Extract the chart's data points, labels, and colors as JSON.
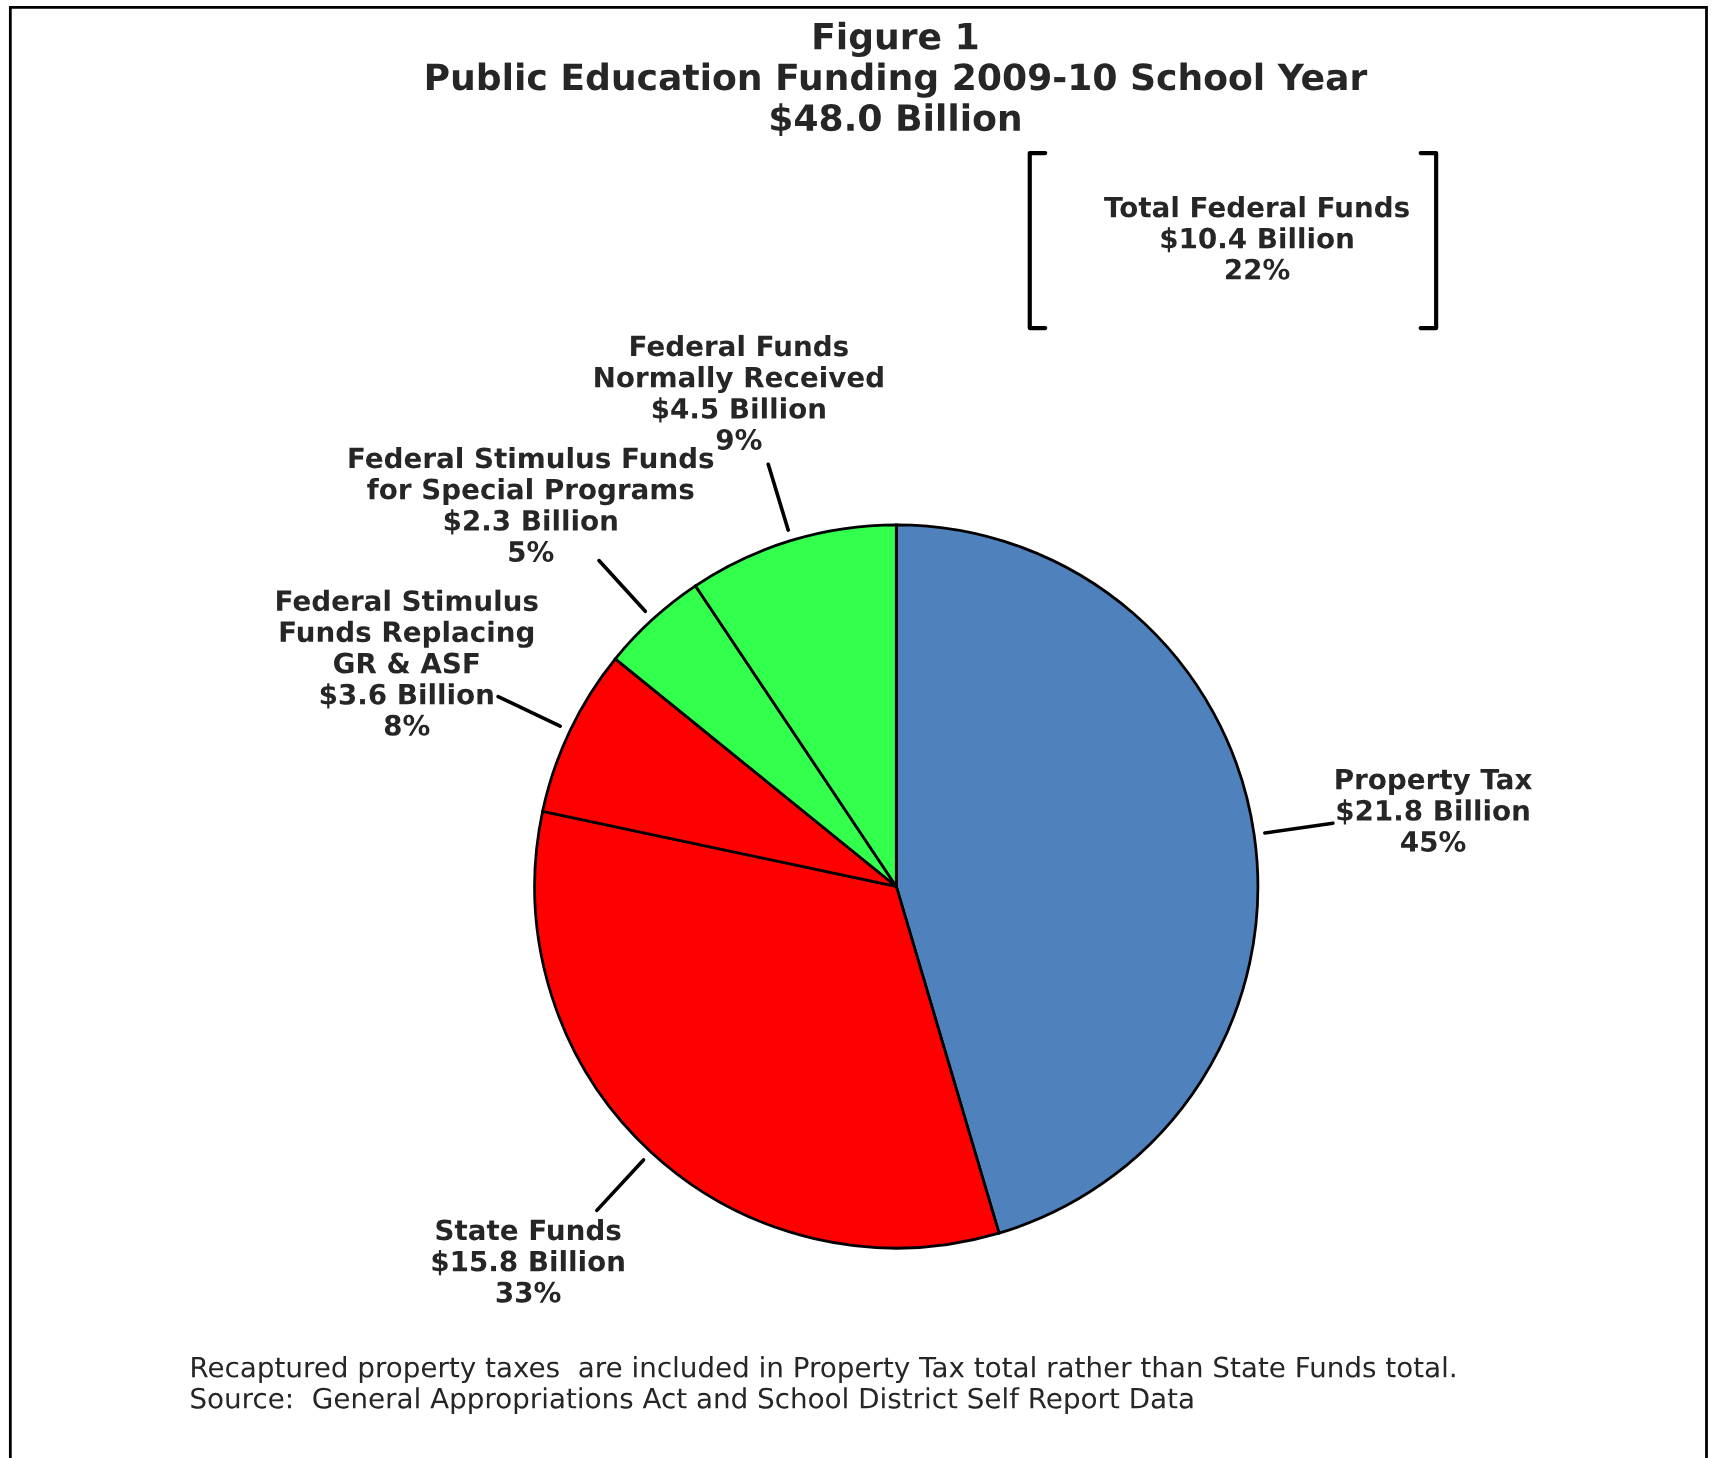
{
  "chart_data": {
    "type": "pie",
    "title": "Figure 1\nPublic Education Funding 2009-10 School Year\n$48.0 Billion",
    "categories": [
      "Property Tax",
      "State Funds",
      "Federal Stimulus\nFunds Replacing\nGR & ASF",
      "Federal Stimulus Funds\nfor Special Programs",
      "Federal Funds\nNormally Received"
    ],
    "values": [
      21.8,
      15.8,
      3.6,
      2.3,
      4.5
    ],
    "value_labels": [
      "$21.8 Billion\n45%",
      "$15.8 Billion\n33%",
      "$3.6 Billion\n8%",
      "$2.3 Billion\n5%",
      "$4.5 Billion\n9%"
    ],
    "colors": [
      "#4f81bd",
      "#ff0000",
      "#ff0000",
      "#33ff4d",
      "#33ff4d"
    ],
    "annotations": [
      "Total Federal Funds\n$10.4 Billion\n22%",
      "Recaptured property taxes  are included in Property Tax total rather than State Funds total.\nSource:  General Appropriations Act and School District Self Report Data"
    ]
  }
}
